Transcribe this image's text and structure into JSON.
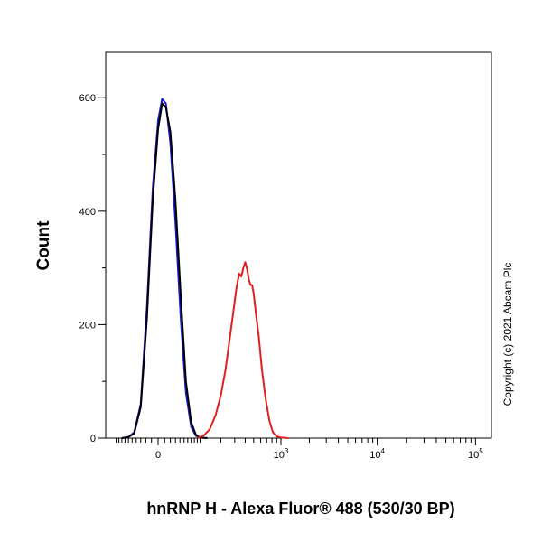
{
  "chart_data": {
    "type": "line",
    "title": "",
    "xlabel": "hnRNP H - Alexa Fluor® 488 (530/30 BP)",
    "ylabel": "Count",
    "x_scale": "biexponential",
    "ylim": [
      0,
      680
    ],
    "y_ticks": [
      {
        "value": 0,
        "label": "0"
      },
      {
        "value": 200,
        "label": "200"
      },
      {
        "value": 400,
        "label": "400"
      },
      {
        "value": 600,
        "label": "600"
      }
    ],
    "x_ticks": [
      {
        "value": 0,
        "base": "0",
        "exp": ""
      },
      {
        "value": 1000,
        "base": "10",
        "exp": "3"
      },
      {
        "value": 10000,
        "base": "10",
        "exp": "4"
      },
      {
        "value": 100000,
        "base": "10",
        "exp": "5"
      }
    ],
    "grid": false,
    "legend": "none",
    "series": [
      {
        "color": "#1a1acc",
        "points": [
          [
            -80,
            0
          ],
          [
            -60,
            2
          ],
          [
            -45,
            10
          ],
          [
            -30,
            60
          ],
          [
            -18,
            230
          ],
          [
            -8,
            440
          ],
          [
            0,
            560
          ],
          [
            6,
            598
          ],
          [
            12,
            590
          ],
          [
            20,
            520
          ],
          [
            30,
            380
          ],
          [
            42,
            210
          ],
          [
            55,
            80
          ],
          [
            70,
            20
          ],
          [
            85,
            4
          ],
          [
            100,
            1
          ],
          [
            130,
            0
          ]
        ]
      },
      {
        "color": "#000000",
        "points": [
          [
            -80,
            0
          ],
          [
            -60,
            2
          ],
          [
            -45,
            8
          ],
          [
            -30,
            55
          ],
          [
            -18,
            210
          ],
          [
            -8,
            420
          ],
          [
            0,
            545
          ],
          [
            6,
            590
          ],
          [
            12,
            583
          ],
          [
            20,
            540
          ],
          [
            30,
            420
          ],
          [
            42,
            250
          ],
          [
            55,
            100
          ],
          [
            70,
            28
          ],
          [
            85,
            6
          ],
          [
            100,
            1
          ],
          [
            130,
            0
          ]
        ]
      },
      {
        "color": "#e02020",
        "points": [
          [
            90,
            0
          ],
          [
            115,
            5
          ],
          [
            140,
            15
          ],
          [
            170,
            40
          ],
          [
            200,
            75
          ],
          [
            230,
            120
          ],
          [
            260,
            175
          ],
          [
            290,
            225
          ],
          [
            315,
            265
          ],
          [
            340,
            290
          ],
          [
            360,
            285
          ],
          [
            380,
            300
          ],
          [
            400,
            310
          ],
          [
            420,
            298
          ],
          [
            440,
            280
          ],
          [
            460,
            270
          ],
          [
            480,
            270
          ],
          [
            500,
            255
          ],
          [
            530,
            220
          ],
          [
            570,
            180
          ],
          [
            620,
            120
          ],
          [
            680,
            70
          ],
          [
            750,
            30
          ],
          [
            820,
            10
          ],
          [
            900,
            3
          ],
          [
            1000,
            1
          ],
          [
            1200,
            0
          ]
        ]
      }
    ]
  },
  "annotations": {
    "copyright": "Copyright (c) 2021 Abcam Plc"
  },
  "colors": {
    "axis": "#000000",
    "background": "#ffffff"
  }
}
